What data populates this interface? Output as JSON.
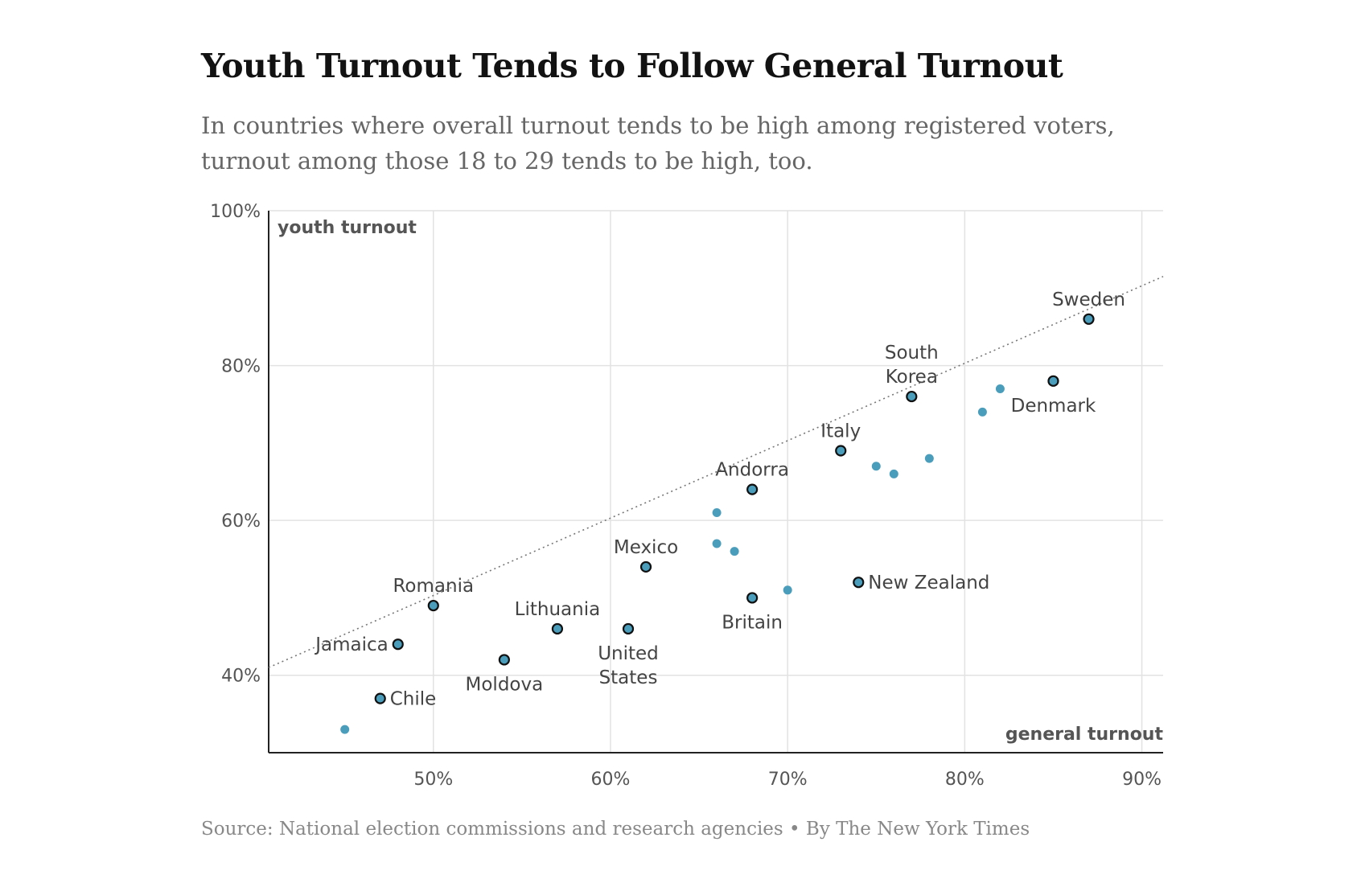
{
  "header": {
    "title": "Youth Turnout Tends to Follow General Turnout",
    "subtitle_lines": [
      "In countries where overall turnout tends to be high among registered voters,",
      "turnout among those 18 to 29 tends to be high, too."
    ]
  },
  "footer": {
    "source_label": "Source:",
    "source_text": "National election commissions and research agencies",
    "separator": "•",
    "byline": "By The New York Times"
  },
  "colors": {
    "point_fill": "#4a9dbb",
    "point_stroke": "#111111",
    "grid": "#e2e2e2",
    "axis": "#222222",
    "trend": "#777777"
  },
  "chart_data": {
    "type": "scatter",
    "title": "Youth Turnout Tends to Follow General Turnout",
    "xlabel": "general turnout",
    "ylabel": "youth turnout",
    "xlim": [
      40.7,
      91.2
    ],
    "ylim": [
      30,
      100
    ],
    "x_ticks": [
      50,
      60,
      70,
      80,
      90
    ],
    "x_tick_labels": [
      "50%",
      "60%",
      "70%",
      "80%",
      "90%"
    ],
    "y_ticks": [
      40,
      60,
      80,
      100
    ],
    "y_tick_labels": [
      "40%",
      "60%",
      "80%",
      "100%"
    ],
    "grid": true,
    "trendline": {
      "style": "dotted",
      "x": [
        40.7,
        91.2
      ],
      "y": [
        41.0,
        91.5
      ]
    },
    "labeled_points": [
      {
        "name": "Sweden",
        "label_lines": [
          "Sweden"
        ],
        "x": 87,
        "y": 86,
        "label_pos": "above"
      },
      {
        "name": "Denmark",
        "label_lines": [
          "Denmark"
        ],
        "x": 85,
        "y": 78,
        "label_pos": "below"
      },
      {
        "name": "South Korea",
        "label_lines": [
          "South",
          "Korea"
        ],
        "x": 77,
        "y": 76,
        "label_pos": "above"
      },
      {
        "name": "Italy",
        "label_lines": [
          "Italy"
        ],
        "x": 73,
        "y": 69,
        "label_pos": "above"
      },
      {
        "name": "Andorra",
        "label_lines": [
          "Andorra"
        ],
        "x": 68,
        "y": 64,
        "label_pos": "above"
      },
      {
        "name": "Mexico",
        "label_lines": [
          "Mexico"
        ],
        "x": 62,
        "y": 54,
        "label_pos": "above"
      },
      {
        "name": "New Zealand",
        "label_lines": [
          "New Zealand"
        ],
        "x": 74,
        "y": 52,
        "label_pos": "right"
      },
      {
        "name": "Britain",
        "label_lines": [
          "Britain"
        ],
        "x": 68,
        "y": 50,
        "label_pos": "below"
      },
      {
        "name": "Romania",
        "label_lines": [
          "Romania"
        ],
        "x": 50,
        "y": 49,
        "label_pos": "above"
      },
      {
        "name": "Lithuania",
        "label_lines": [
          "Lithuania"
        ],
        "x": 57,
        "y": 46,
        "label_pos": "above"
      },
      {
        "name": "United States",
        "label_lines": [
          "United",
          "States"
        ],
        "x": 61,
        "y": 46,
        "label_pos": "below"
      },
      {
        "name": "Jamaica",
        "label_lines": [
          "Jamaica"
        ],
        "x": 48,
        "y": 44,
        "label_pos": "left"
      },
      {
        "name": "Moldova",
        "label_lines": [
          "Moldova"
        ],
        "x": 54,
        "y": 42,
        "label_pos": "below"
      },
      {
        "name": "Chile",
        "label_lines": [
          "Chile"
        ],
        "x": 47,
        "y": 37,
        "label_pos": "right"
      }
    ],
    "unlabeled_points": [
      {
        "x": 82,
        "y": 77
      },
      {
        "x": 81,
        "y": 74
      },
      {
        "x": 78,
        "y": 68
      },
      {
        "x": 75,
        "y": 67
      },
      {
        "x": 76,
        "y": 66
      },
      {
        "x": 66,
        "y": 61
      },
      {
        "x": 66,
        "y": 57
      },
      {
        "x": 67,
        "y": 56
      },
      {
        "x": 70,
        "y": 51
      },
      {
        "x": 45,
        "y": 33
      }
    ]
  }
}
